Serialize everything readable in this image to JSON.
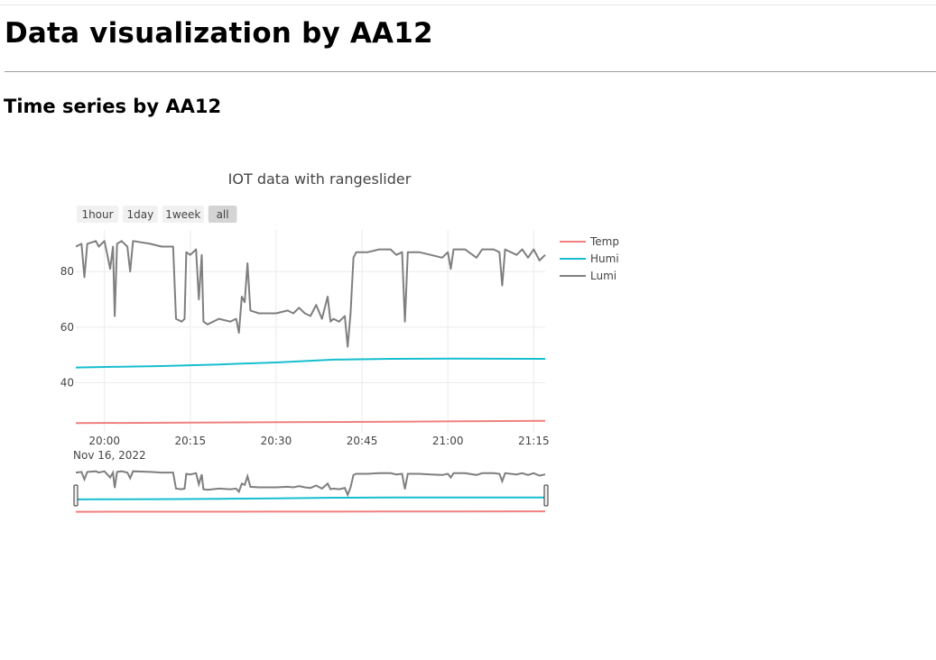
{
  "page": {
    "heading": "Data visualization by AA12",
    "subheading": "Time series by AA12"
  },
  "chart_data": {
    "type": "line",
    "title": "IOT data with rangeslider",
    "range_buttons": [
      {
        "label": "1hour",
        "active": false
      },
      {
        "label": "1day",
        "active": false
      },
      {
        "label": "1week",
        "active": false
      },
      {
        "label": "all",
        "active": true
      }
    ],
    "x_range": [
      "19:55",
      "21:17"
    ],
    "x_ticks": [
      "20:00",
      "20:15",
      "20:30",
      "20:45",
      "21:00",
      "21:15"
    ],
    "x_date_label": "Nov 16, 2022",
    "y_range": [
      22,
      95
    ],
    "y_ticks": [
      40,
      60,
      80
    ],
    "grid": true,
    "legend_position": "right",
    "rangeslider": true,
    "series": [
      {
        "name": "Temp",
        "color": "#f08080",
        "points": [
          [
            "19:55",
            25.5
          ],
          [
            "20:10",
            25.6
          ],
          [
            "20:30",
            25.8
          ],
          [
            "20:50",
            26.0
          ],
          [
            "21:17",
            26.3
          ]
        ]
      },
      {
        "name": "Humi",
        "color": "#17becf",
        "points": [
          [
            "19:55",
            45.5
          ],
          [
            "20:00",
            45.7
          ],
          [
            "20:10",
            46.0
          ],
          [
            "20:20",
            46.6
          ],
          [
            "20:30",
            47.3
          ],
          [
            "20:40",
            48.3
          ],
          [
            "20:50",
            48.6
          ],
          [
            "21:00",
            48.7
          ],
          [
            "21:17",
            48.6
          ]
        ]
      },
      {
        "name": "Lumi",
        "color": "#7f7f7f",
        "points": [
          [
            "19:55",
            89
          ],
          [
            "19:56",
            90
          ],
          [
            "19:56.5",
            78
          ],
          [
            "19:57",
            90
          ],
          [
            "19:58.5",
            91
          ],
          [
            "19:59",
            89
          ],
          [
            "20:00",
            91
          ],
          [
            "20:00.5",
            86
          ],
          [
            "20:01",
            81
          ],
          [
            "20:01.5",
            89
          ],
          [
            "20:01.8",
            64
          ],
          [
            "20:02.2",
            90
          ],
          [
            "20:03",
            91
          ],
          [
            "20:04",
            89
          ],
          [
            "20:04.5",
            80
          ],
          [
            "20:05",
            91
          ],
          [
            "20:08",
            90
          ],
          [
            "20:10",
            89
          ],
          [
            "20:12",
            89
          ],
          [
            "20:12.5",
            63
          ],
          [
            "20:13.5",
            62
          ],
          [
            "20:14",
            63
          ],
          [
            "20:14.3",
            87
          ],
          [
            "20:15",
            86
          ],
          [
            "20:16",
            88
          ],
          [
            "20:16.5",
            70
          ],
          [
            "20:17",
            86
          ],
          [
            "20:17.3",
            62
          ],
          [
            "20:18",
            61
          ],
          [
            "20:20",
            63
          ],
          [
            "20:22",
            62
          ],
          [
            "20:23",
            63
          ],
          [
            "20:23.5",
            58
          ],
          [
            "20:24",
            71
          ],
          [
            "20:24.5",
            69
          ],
          [
            "20:25",
            83
          ],
          [
            "20:25.5",
            66
          ],
          [
            "20:27",
            65
          ],
          [
            "20:30",
            65
          ],
          [
            "20:32",
            66
          ],
          [
            "20:33",
            65
          ],
          [
            "20:34",
            67
          ],
          [
            "20:35",
            65
          ],
          [
            "20:36",
            64
          ],
          [
            "20:37",
            68
          ],
          [
            "20:38",
            63
          ],
          [
            "20:39",
            71
          ],
          [
            "20:39.5",
            62
          ],
          [
            "20:40",
            63
          ],
          [
            "20:41",
            62
          ],
          [
            "20:42",
            64
          ],
          [
            "20:42.5",
            53
          ],
          [
            "20:43",
            65
          ],
          [
            "20:43.5",
            85
          ],
          [
            "20:44",
            87
          ],
          [
            "20:46",
            87
          ],
          [
            "20:48",
            88
          ],
          [
            "20:50",
            88
          ],
          [
            "20:51",
            86
          ],
          [
            "20:52",
            87
          ],
          [
            "20:52.5",
            62
          ],
          [
            "20:53",
            87
          ],
          [
            "20:55",
            87
          ],
          [
            "20:57",
            86
          ],
          [
            "20:59",
            85
          ],
          [
            "21:00",
            87
          ],
          [
            "21:00.5",
            81
          ],
          [
            "21:01",
            88
          ],
          [
            "21:03",
            88
          ],
          [
            "21:05",
            85
          ],
          [
            "21:06",
            88
          ],
          [
            "21:08",
            88
          ],
          [
            "21:09",
            87
          ],
          [
            "21:09.5",
            75
          ],
          [
            "21:10",
            88
          ],
          [
            "21:12",
            86
          ],
          [
            "21:13",
            88
          ],
          [
            "21:14",
            85
          ],
          [
            "21:15",
            88
          ],
          [
            "21:16",
            84
          ],
          [
            "21:17",
            86
          ]
        ]
      }
    ]
  }
}
